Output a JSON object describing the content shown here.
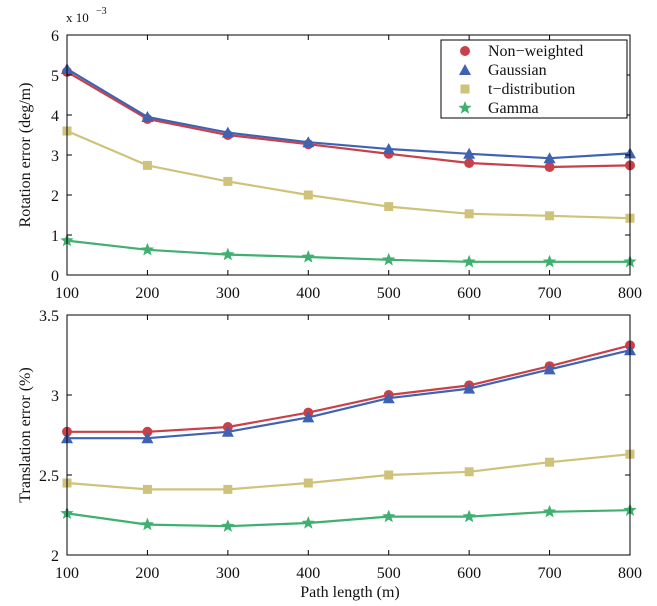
{
  "colors": {
    "nonweighted": "#c8404a",
    "gaussian": "#3f63b2",
    "tdist": "#cfc27a",
    "gamma": "#3fb06f",
    "axis": "#000000"
  },
  "chart_data": [
    {
      "type": "line",
      "title": "",
      "xlabel": "",
      "ylabel": "Rotation error (deg/m)",
      "y_scale_note": "x 10",
      "y_scale_exp": "−3",
      "x": [
        100,
        200,
        300,
        400,
        500,
        600,
        700,
        800
      ],
      "xlim": [
        100,
        800
      ],
      "ylim": [
        0,
        6
      ],
      "xticks": [
        "100",
        "200",
        "300",
        "400",
        "500",
        "600",
        "700",
        "800"
      ],
      "yticks": [
        "0",
        "1",
        "2",
        "3",
        "4",
        "5",
        "6"
      ],
      "legend": {
        "position": "top-right",
        "entries": [
          "Non−weighted",
          "Gaussian",
          "t−distribution",
          "Gamma"
        ]
      },
      "series": [
        {
          "name": "Non−weighted",
          "marker": "circle",
          "values": [
            5.08,
            3.9,
            3.5,
            3.27,
            3.03,
            2.8,
            2.7,
            2.74
          ]
        },
        {
          "name": "Gaussian",
          "marker": "triangle",
          "values": [
            5.15,
            3.95,
            3.56,
            3.32,
            3.15,
            3.03,
            2.92,
            3.04
          ]
        },
        {
          "name": "t−distribution",
          "marker": "square",
          "values": [
            3.6,
            2.74,
            2.34,
            2.0,
            1.71,
            1.53,
            1.48,
            1.42
          ]
        },
        {
          "name": "Gamma",
          "marker": "star",
          "values": [
            0.86,
            0.63,
            0.51,
            0.45,
            0.38,
            0.33,
            0.33,
            0.33
          ]
        }
      ]
    },
    {
      "type": "line",
      "title": "",
      "xlabel": "Path length (m)",
      "ylabel": "Translation error (%)",
      "x": [
        100,
        200,
        300,
        400,
        500,
        600,
        700,
        800
      ],
      "xlim": [
        100,
        800
      ],
      "ylim": [
        2,
        3.5
      ],
      "xticks": [
        "100",
        "200",
        "300",
        "400",
        "500",
        "600",
        "700",
        "800"
      ],
      "yticks": [
        "2",
        "2.5",
        "3",
        "3.5"
      ],
      "series": [
        {
          "name": "Non−weighted",
          "marker": "circle",
          "values": [
            2.77,
            2.77,
            2.8,
            2.89,
            3.0,
            3.06,
            3.18,
            3.31
          ]
        },
        {
          "name": "Gaussian",
          "marker": "triangle",
          "values": [
            2.73,
            2.73,
            2.77,
            2.86,
            2.98,
            3.04,
            3.16,
            3.28
          ]
        },
        {
          "name": "t−distribution",
          "marker": "square",
          "values": [
            2.45,
            2.41,
            2.41,
            2.45,
            2.5,
            2.52,
            2.58,
            2.63
          ]
        },
        {
          "name": "Gamma",
          "marker": "star",
          "values": [
            2.26,
            2.19,
            2.18,
            2.2,
            2.24,
            2.24,
            2.27,
            2.28
          ]
        }
      ]
    }
  ]
}
